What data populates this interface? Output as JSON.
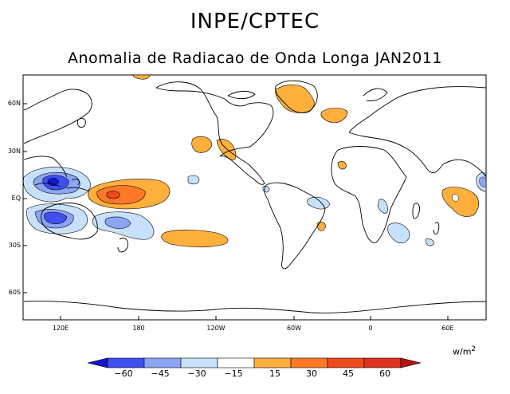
{
  "header": {
    "title": "INPE/CPTEC",
    "subtitle": "Anomalia de Radiacao de Onda Longa JAN2011"
  },
  "axes": {
    "lat_labels": [
      "60N",
      "30N",
      "EQ",
      "30S",
      "60S"
    ],
    "lon_labels": [
      "120E",
      "180",
      "120W",
      "60W",
      "0",
      "60E"
    ]
  },
  "colorbar": {
    "unit": "w/m",
    "unit_exp": "2",
    "labels": [
      "−60",
      "−45",
      "−30",
      "−15",
      "15",
      "30",
      "45",
      "60"
    ],
    "colors": [
      "#1414d2",
      "#4050f0",
      "#8ca5f5",
      "#c8e1fa",
      "#ffffff",
      "#ffaf3c",
      "#ff7828",
      "#f04b1e",
      "#b41414"
    ]
  }
}
